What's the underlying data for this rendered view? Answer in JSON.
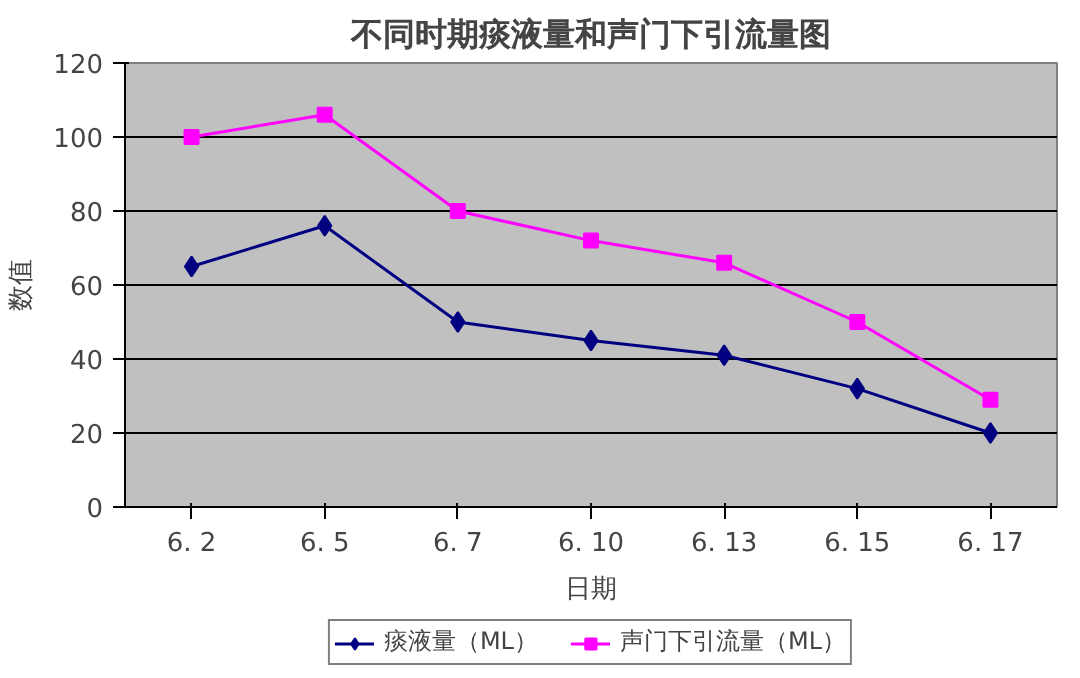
{
  "chart_data": {
    "type": "line",
    "title": "不同时期痰液量和声门下引流量图",
    "xlabel": "日期",
    "ylabel": "数值",
    "categories": [
      "6. 2",
      "6. 5",
      "6. 7",
      "6. 10",
      "6. 13",
      "6. 15",
      "6. 17"
    ],
    "series": [
      {
        "name": "痰液量（ML）",
        "color": "#000080",
        "marker": "diamond",
        "values": [
          65,
          76,
          50,
          45,
          41,
          32,
          20
        ]
      },
      {
        "name": "声门下引流量（ML）",
        "color": "#ff00ff",
        "marker": "square",
        "values": [
          100,
          106,
          80,
          72,
          66,
          50,
          29
        ]
      }
    ],
    "ylim": [
      0,
      120
    ],
    "yticks": [
      0,
      20,
      40,
      60,
      80,
      100,
      120
    ],
    "grid": "y",
    "legend": "bottom",
    "line_style": "solid"
  }
}
